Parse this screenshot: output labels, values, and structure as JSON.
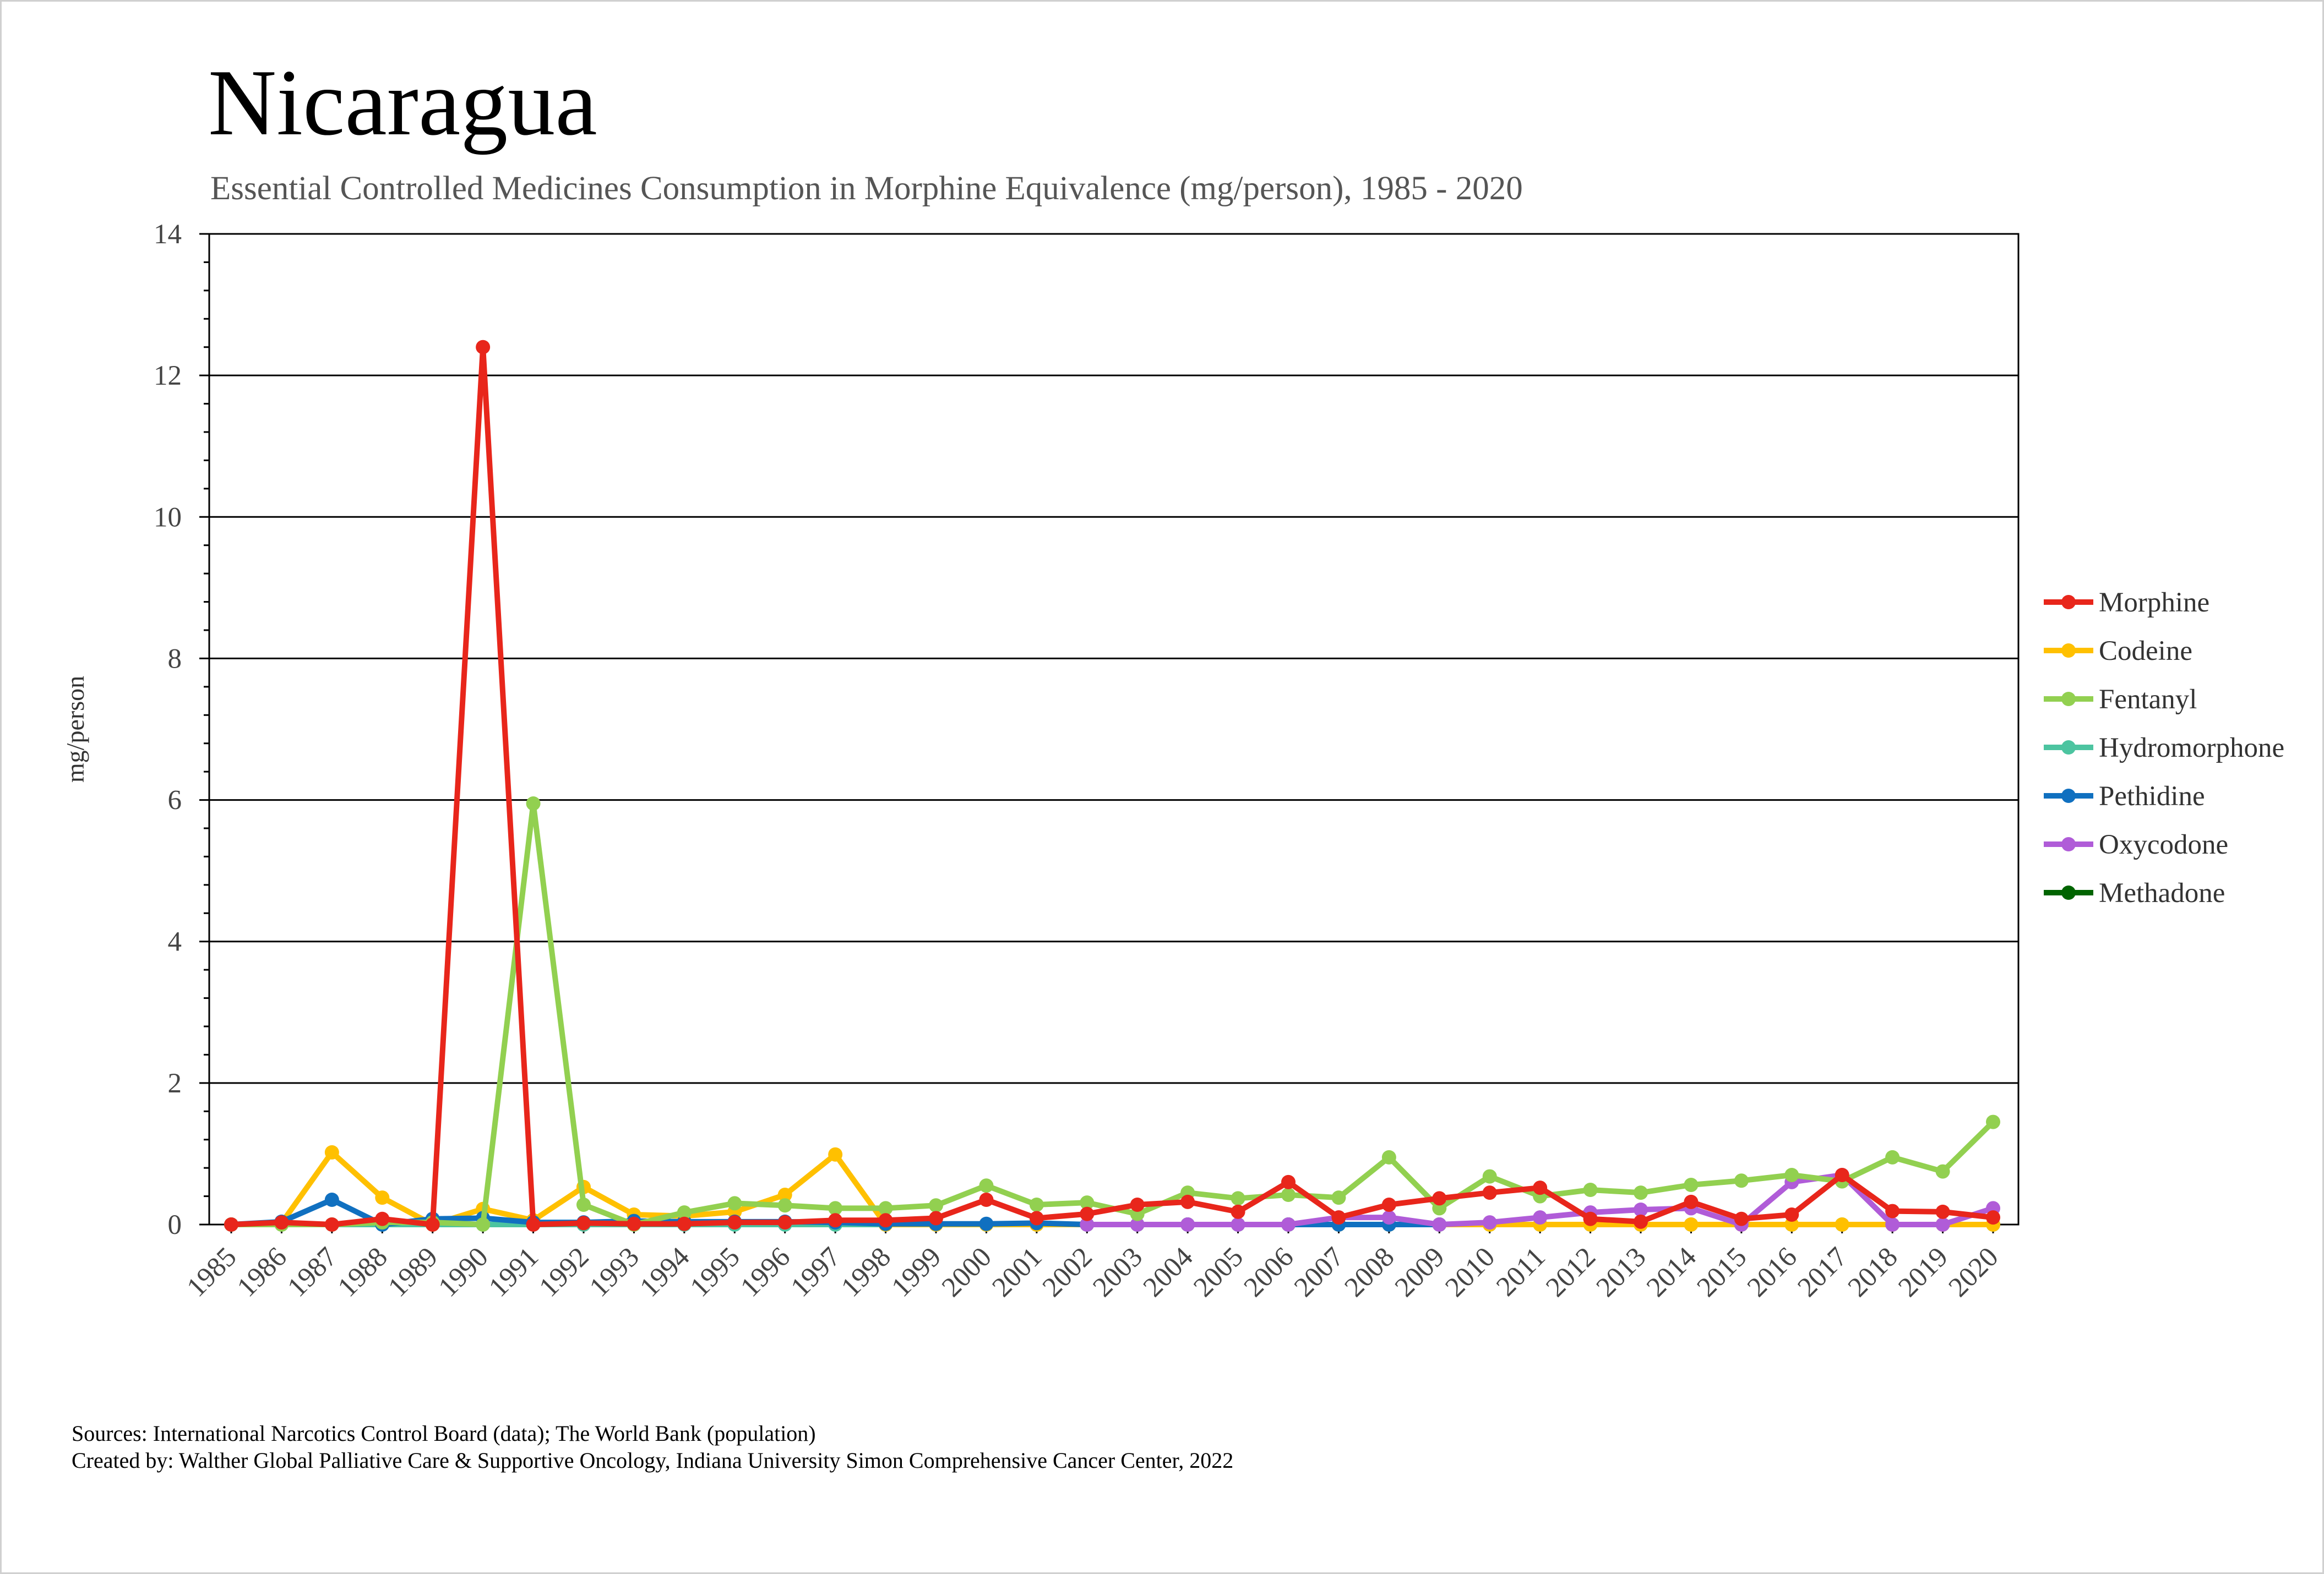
{
  "title": "Nicaragua",
  "subtitle": "Essential Controlled Medicines Consumption in Morphine Equivalence (mg/person), 1985 - 2020",
  "footer": {
    "line1": "Sources: International Narcotics Control Board (data); The World Bank (population)",
    "line2": "Created by: Walther Global Palliative Care & Supportive Oncology, Indiana University Simon Comprehensive Cancer Center, 2022"
  },
  "chart_data": {
    "type": "line",
    "title": "Nicaragua",
    "subtitle": "Essential Controlled Medicines Consumption in Morphine Equivalence (mg/person), 1985 - 2020",
    "xlabel": "",
    "ylabel": "mg/person",
    "ylim": [
      0,
      14
    ],
    "yticks": [
      0,
      2,
      4,
      6,
      8,
      10,
      12,
      14
    ],
    "grid": true,
    "legend_position": "right",
    "x": [
      "1985",
      "1986",
      "1987",
      "1988",
      "1989",
      "1990",
      "1991",
      "1992",
      "1993",
      "1994",
      "1995",
      "1996",
      "1997",
      "1998",
      "1999",
      "2000",
      "2001",
      "2002",
      "2003",
      "2004",
      "2005",
      "2006",
      "2007",
      "2008",
      "2009",
      "2010",
      "2011",
      "2012",
      "2013",
      "2014",
      "2015",
      "2016",
      "2017",
      "2018",
      "2019",
      "2020"
    ],
    "series": [
      {
        "name": "Morphine",
        "color": "#e8261b",
        "values": [
          0,
          0.03,
          0,
          0.08,
          0,
          12.4,
          0,
          0.02,
          0.01,
          0.01,
          0.03,
          0.03,
          0.06,
          0.06,
          0.09,
          0.35,
          0.09,
          0.15,
          0.28,
          0.32,
          0.18,
          0.6,
          0.1,
          0.28,
          0.37,
          0.45,
          0.52,
          0.08,
          0.04,
          0.32,
          0.08,
          0.14,
          0.7,
          0.19,
          0.18,
          0.1
        ]
      },
      {
        "name": "Codeine",
        "color": "#ffc000",
        "values": [
          0,
          0.02,
          1.02,
          0.38,
          0,
          0.22,
          0.06,
          0.53,
          0.14,
          0.12,
          0.18,
          0.42,
          0.99,
          0,
          0,
          0,
          0,
          0,
          0,
          0,
          0,
          0,
          0,
          0,
          0,
          0,
          0,
          0,
          0,
          0,
          0,
          0,
          0,
          0,
          0,
          0
        ]
      },
      {
        "name": "Fentanyl",
        "color": "#92d050",
        "values": [
          0,
          0,
          0,
          0.03,
          0.03,
          0,
          5.95,
          0.28,
          0,
          0.17,
          0.3,
          0.27,
          0.23,
          0.23,
          0.27,
          0.55,
          0.28,
          0.31,
          0.15,
          0.45,
          0.37,
          0.42,
          0.38,
          0.95,
          0.23,
          0.68,
          0.4,
          0.49,
          0.45,
          0.56,
          0.62,
          0.7,
          0.61,
          0.95,
          0.75,
          1.45
        ]
      },
      {
        "name": "Hydromorphone",
        "color": "#4cc4a0",
        "values": [
          0,
          0,
          0,
          0,
          0,
          0,
          0,
          0,
          0,
          0,
          0,
          0,
          0,
          0,
          0,
          0,
          0,
          0,
          0,
          0,
          0,
          0,
          0,
          0,
          0,
          0,
          0,
          0,
          0,
          0,
          0,
          0,
          0,
          0,
          0,
          0
        ]
      },
      {
        "name": "Pethidine",
        "color": "#1070c0",
        "values": [
          0,
          0.04,
          0.35,
          0,
          0.08,
          0.09,
          0.03,
          0.03,
          0.05,
          0.04,
          0.04,
          0.04,
          0.03,
          0.01,
          0.01,
          0.01,
          0.02,
          0,
          0,
          0,
          0,
          0,
          0,
          0,
          0,
          null,
          null,
          null,
          null,
          null,
          null,
          null,
          null,
          null,
          null,
          null
        ]
      },
      {
        "name": "Oxycodone",
        "color": "#b05cd8",
        "values": [
          null,
          null,
          null,
          null,
          null,
          null,
          null,
          null,
          null,
          null,
          null,
          null,
          null,
          null,
          null,
          null,
          null,
          0,
          0,
          0,
          0,
          0,
          0.1,
          0.1,
          0,
          0.03,
          0.1,
          0.17,
          0.21,
          0.23,
          0,
          0.6,
          0.7,
          0,
          0,
          0.23
        ]
      },
      {
        "name": "Methadone",
        "color": "#006400",
        "values": [
          null,
          null,
          null,
          null,
          null,
          null,
          null,
          null,
          null,
          null,
          null,
          null,
          null,
          null,
          null,
          null,
          null,
          null,
          null,
          null,
          null,
          null,
          null,
          null,
          null,
          null,
          null,
          null,
          null,
          null,
          null,
          null,
          null,
          null,
          null,
          null
        ]
      }
    ]
  }
}
